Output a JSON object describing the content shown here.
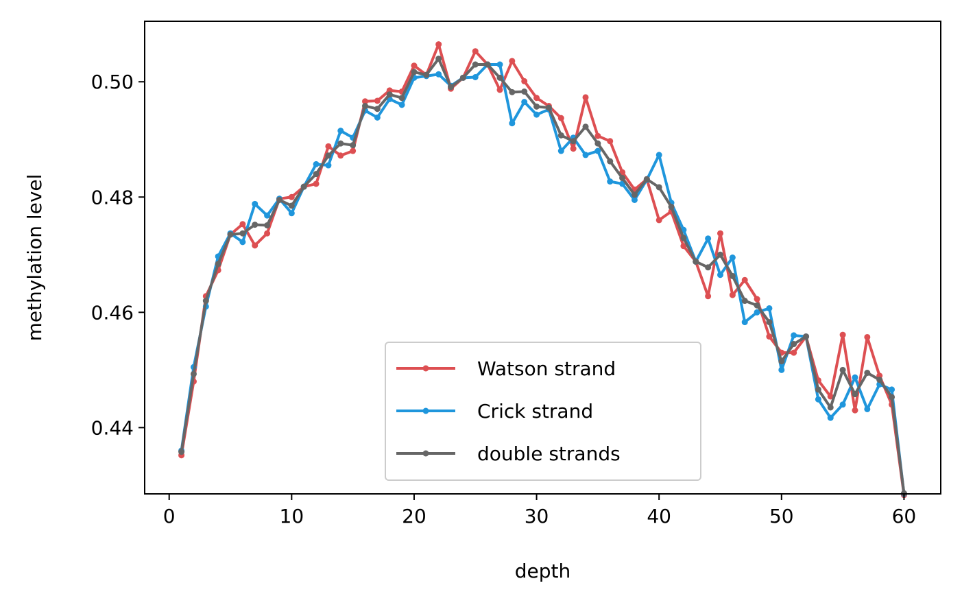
{
  "chart_data": {
    "type": "line",
    "title": "",
    "xlabel": "depth",
    "ylabel": "methylation level",
    "xlim": [
      -2,
      63
    ],
    "ylim": [
      0.4285,
      0.5105
    ],
    "xticks": [
      0,
      10,
      20,
      30,
      40,
      50,
      60
    ],
    "yticks": [
      0.44,
      0.46,
      0.48,
      0.5
    ],
    "ytick_labels": [
      "0.44",
      "0.46",
      "0.48",
      "0.50"
    ],
    "xtick_labels": [
      "0",
      "10",
      "20",
      "30",
      "40",
      "50",
      "60"
    ],
    "grid": false,
    "legend_position": "lower-center",
    "x": [
      1,
      2,
      3,
      4,
      5,
      6,
      7,
      8,
      9,
      10,
      11,
      12,
      13,
      14,
      15,
      16,
      17,
      18,
      19,
      20,
      21,
      22,
      23,
      24,
      25,
      26,
      27,
      28,
      29,
      30,
      31,
      32,
      33,
      34,
      35,
      36,
      37,
      38,
      39,
      40,
      41,
      42,
      43,
      44,
      45,
      46,
      47,
      48,
      49,
      50,
      51,
      52,
      53,
      54,
      55,
      56,
      57,
      58,
      59,
      60
    ],
    "series": [
      {
        "name": "Watson strand",
        "color": "#dd4f52",
        "values": [
          0.4352,
          0.448,
          0.4628,
          0.4673,
          0.4735,
          0.4753,
          0.4716,
          0.4737,
          0.4797,
          0.48,
          0.4818,
          0.4823,
          0.4888,
          0.4872,
          0.488,
          0.4966,
          0.4967,
          0.4985,
          0.4983,
          0.5028,
          0.5012,
          0.5065,
          0.4988,
          0.5007,
          0.5053,
          0.503,
          0.4986,
          0.5036,
          0.5001,
          0.4972,
          0.4958,
          0.4937,
          0.4884,
          0.4973,
          0.4906,
          0.4897,
          0.4843,
          0.4813,
          0.4831,
          0.476,
          0.4775,
          0.4715,
          0.4688,
          0.4628,
          0.4737,
          0.463,
          0.4656,
          0.4623,
          0.4558,
          0.453,
          0.453,
          0.4558,
          0.4482,
          0.4454,
          0.4561,
          0.443,
          0.4557,
          0.449,
          0.444,
          0.4283
        ]
      },
      {
        "name": "Crick strand",
        "color": "#1f96dc",
        "values": [
          0.436,
          0.4505,
          0.461,
          0.4697,
          0.4737,
          0.4722,
          0.4788,
          0.4768,
          0.4797,
          0.4772,
          0.4818,
          0.4857,
          0.4855,
          0.4915,
          0.4903,
          0.495,
          0.4938,
          0.497,
          0.496,
          0.5007,
          0.501,
          0.5013,
          0.4993,
          0.5007,
          0.5008,
          0.503,
          0.503,
          0.4928,
          0.4965,
          0.4943,
          0.4952,
          0.488,
          0.4903,
          0.4873,
          0.488,
          0.4827,
          0.4823,
          0.4795,
          0.483,
          0.4873,
          0.479,
          0.4743,
          0.4688,
          0.4728,
          0.4665,
          0.4695,
          0.4583,
          0.46,
          0.4607,
          0.45,
          0.456,
          0.4558,
          0.4449,
          0.4417,
          0.444,
          0.4487,
          0.4432,
          0.4475,
          0.4466,
          0.4285
        ]
      },
      {
        "name": "double strands",
        "color": "#666666",
        "values": [
          0.4358,
          0.4493,
          0.462,
          0.4684,
          0.4735,
          0.4737,
          0.4752,
          0.4751,
          0.4795,
          0.4785,
          0.4818,
          0.484,
          0.4872,
          0.4893,
          0.489,
          0.4958,
          0.4953,
          0.4978,
          0.4972,
          0.5017,
          0.5012,
          0.504,
          0.4991,
          0.5007,
          0.503,
          0.503,
          0.5007,
          0.4982,
          0.4983,
          0.4957,
          0.4955,
          0.4907,
          0.4897,
          0.4922,
          0.4893,
          0.4862,
          0.4833,
          0.4804,
          0.4831,
          0.4817,
          0.4783,
          0.4729,
          0.4688,
          0.4678,
          0.47,
          0.4663,
          0.462,
          0.4612,
          0.4583,
          0.4515,
          0.4545,
          0.4558,
          0.4466,
          0.4435,
          0.45,
          0.4458,
          0.4495,
          0.4483,
          0.4453,
          0.4286
        ]
      }
    ]
  }
}
